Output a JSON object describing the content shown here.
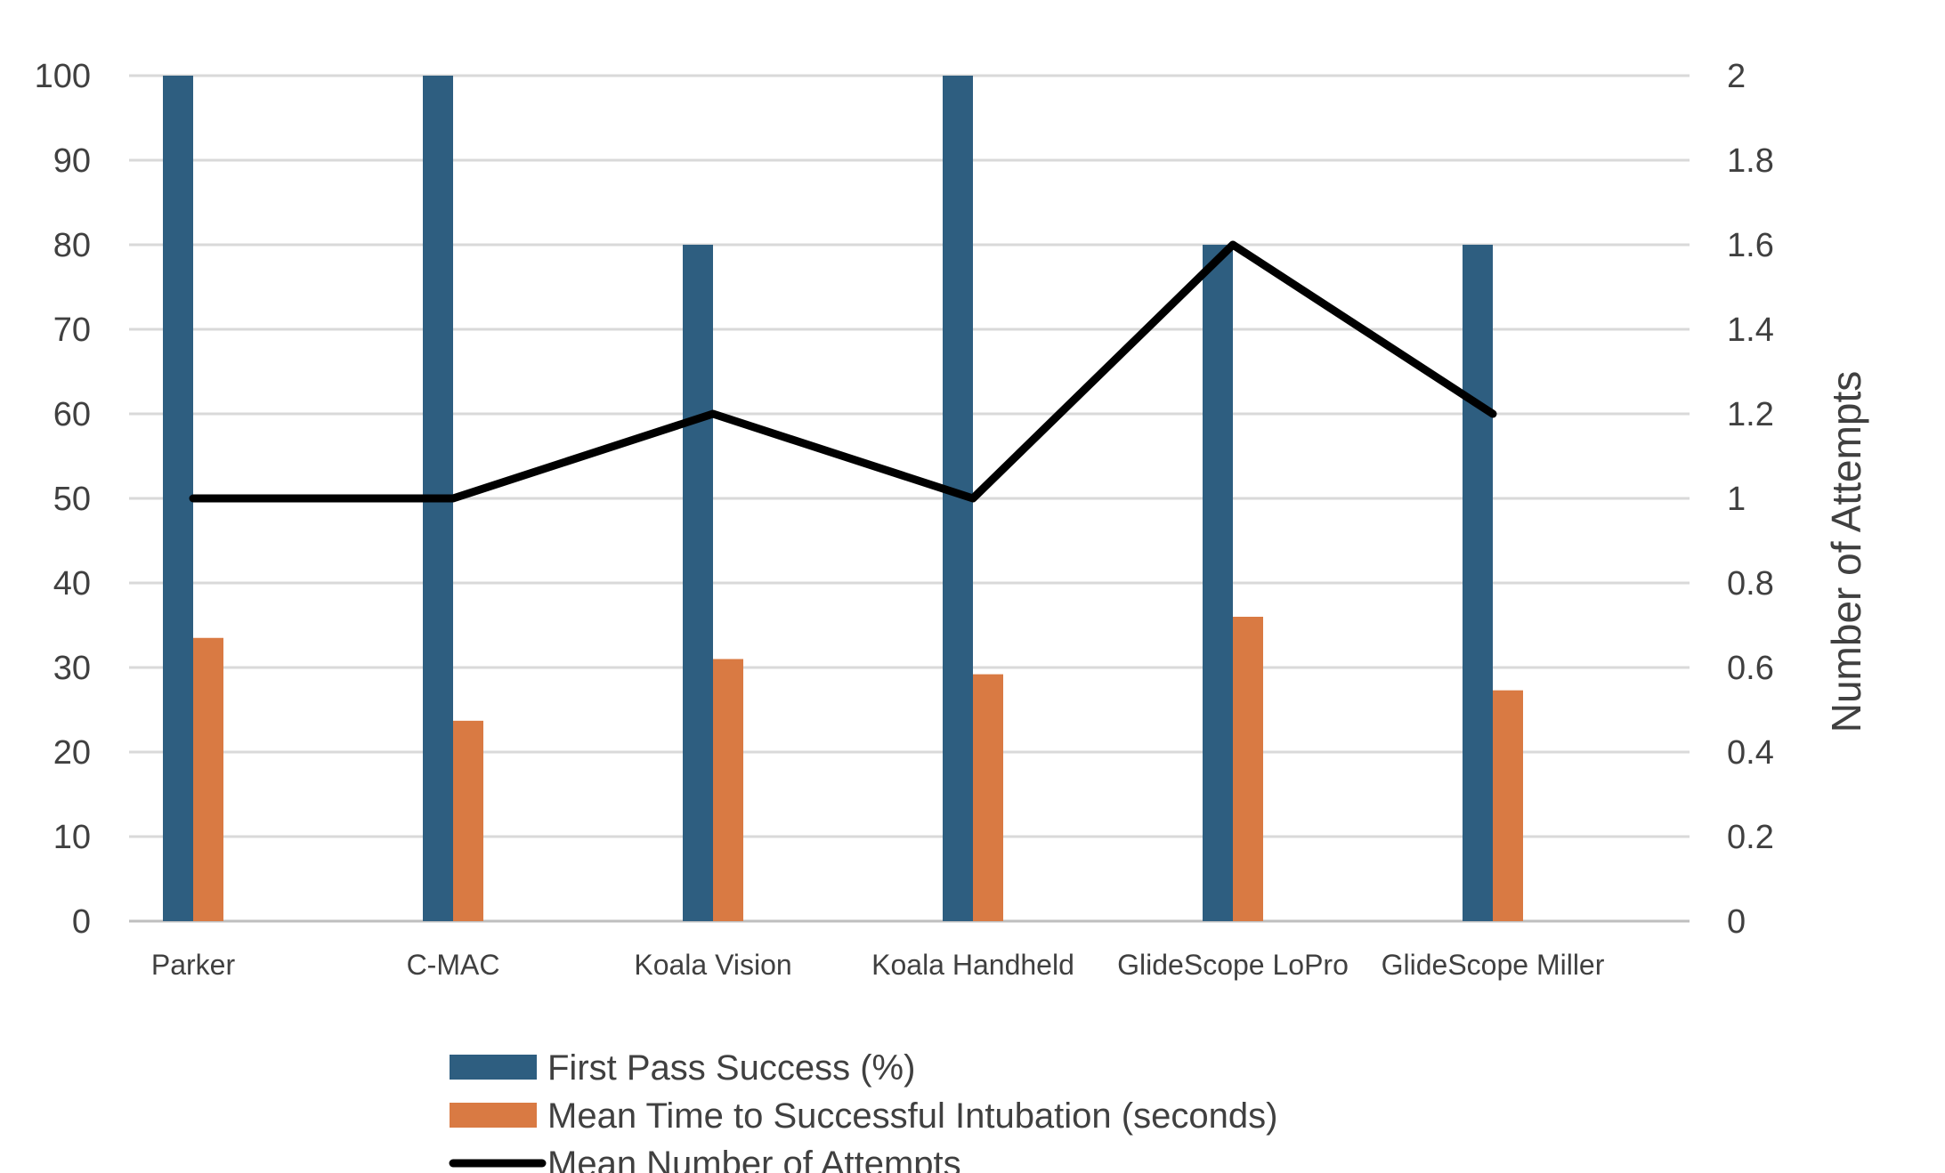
{
  "chart_data": {
    "type": "bar",
    "categories": [
      "Parker",
      "C-MAC",
      "Koala Vision",
      "Koala Handheld",
      "GlideScope LoPro",
      "GlideScope Miller"
    ],
    "series": [
      {
        "name": "First Pass Success (%)",
        "kind": "bar",
        "axis": "left",
        "color": "#2E5E80",
        "values": [
          100,
          100,
          80,
          100,
          80,
          80
        ]
      },
      {
        "name": "Mean Time to Successful Intubation (seconds)",
        "kind": "bar",
        "axis": "left",
        "color": "#D97A43",
        "values": [
          33.5,
          23.7,
          31,
          29.2,
          36,
          27.3
        ]
      },
      {
        "name": "Mean Number of Attempts",
        "kind": "line",
        "axis": "right",
        "color": "#000000",
        "values": [
          1,
          1,
          1.2,
          1,
          1.6,
          1.2
        ]
      }
    ],
    "title": "",
    "xlabel": "",
    "ylabel": "",
    "y2label": "Number of Attempts",
    "ylim": [
      0,
      100
    ],
    "y2lim": [
      0,
      2
    ],
    "yticks": [
      "0",
      "10",
      "20",
      "30",
      "40",
      "50",
      "60",
      "70",
      "80",
      "90",
      "100"
    ],
    "y2ticks": [
      "0",
      "0.2",
      "0.4",
      "0.6",
      "0.8",
      "1",
      "1.2",
      "1.4",
      "1.6",
      "1.8",
      "2"
    ],
    "grid": true,
    "legend": "bottom"
  }
}
